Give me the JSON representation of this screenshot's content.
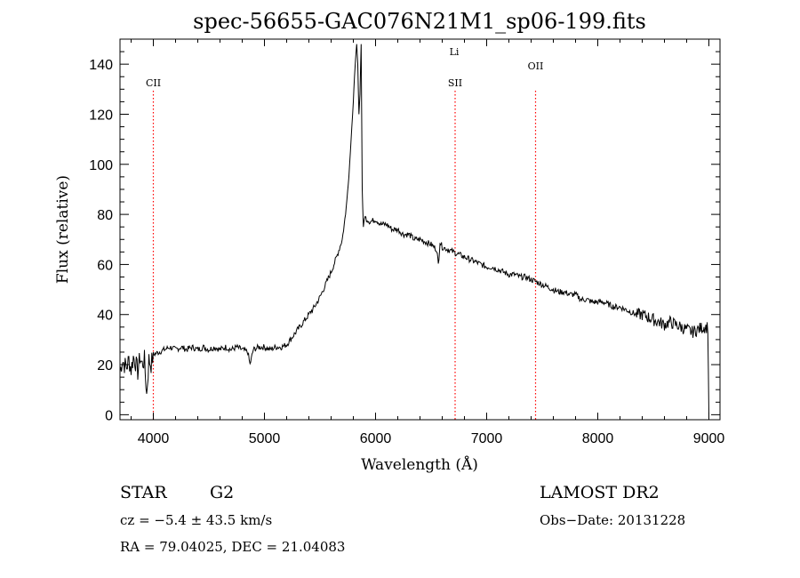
{
  "chart_data": {
    "type": "line",
    "title": "spec-56655-GAC076N21M1_sp06-199.fits",
    "xlabel": "Wavelength (Å)",
    "ylabel": "Flux (relative)",
    "xlim": [
      3700,
      9100
    ],
    "ylim": [
      -2,
      150
    ],
    "x_ticks": [
      4000,
      5000,
      6000,
      7000,
      8000,
      9000
    ],
    "y_ticks": [
      0,
      20,
      40,
      60,
      80,
      100,
      120,
      140
    ],
    "x_tick_labels": [
      "4000",
      "5000",
      "6000",
      "7000",
      "8000",
      "9000"
    ],
    "y_tick_labels": [
      "0",
      "20",
      "40",
      "60",
      "80",
      "100",
      "120",
      "140"
    ],
    "grid": false,
    "line_color": "#000000",
    "marker_color": "#ff0000",
    "series": [
      {
        "values_x": [
          3700,
          3720,
          3740,
          3760,
          3780,
          3800,
          3820,
          3840,
          3860,
          3880,
          3900,
          3920,
          3940,
          3960,
          3980,
          4000,
          4050,
          4100,
          4150,
          4200,
          4250,
          4300,
          4350,
          4400,
          4450,
          4500,
          4550,
          4600,
          4650,
          4700,
          4750,
          4800,
          4850,
          4870,
          4900,
          4950,
          5000,
          5050,
          5100,
          5150,
          5200,
          5250,
          5300,
          5350,
          5400,
          5450,
          5500,
          5550,
          5600,
          5650,
          5700,
          5730,
          5760,
          5780,
          5800,
          5810,
          5820,
          5830,
          5840,
          5850,
          5860,
          5870,
          5880,
          5890,
          5900,
          5950,
          6000,
          6050,
          6100,
          6150,
          6200,
          6250,
          6300,
          6350,
          6400,
          6450,
          6500,
          6550,
          6565,
          6580,
          6600,
          6650,
          6700,
          6750,
          6800,
          6850,
          6900,
          6950,
          7000,
          7050,
          7100,
          7150,
          7200,
          7250,
          7300,
          7350,
          7400,
          7450,
          7500,
          7550,
          7600,
          7650,
          7700,
          7750,
          7800,
          7850,
          7900,
          7950,
          8000,
          8050,
          8100,
          8150,
          8200,
          8250,
          8300,
          8350,
          8400,
          8450,
          8500,
          8550,
          8600,
          8650,
          8700,
          8750,
          8800,
          8850,
          8900,
          8950,
          8990,
          9000
        ],
        "values_y": [
          17,
          22,
          20,
          19,
          22,
          18,
          23,
          21,
          17,
          23,
          20,
          22,
          8,
          22,
          20,
          24,
          25,
          26,
          27,
          26,
          27,
          26,
          27,
          26,
          27,
          26,
          27,
          26,
          27,
          26,
          27,
          26,
          25,
          20,
          26,
          27,
          27,
          26,
          27,
          27,
          28,
          31,
          34,
          37,
          40,
          43,
          47,
          52,
          57,
          63,
          70,
          80,
          95,
          110,
          125,
          135,
          142,
          148,
          140,
          120,
          128,
          148,
          90,
          75,
          79,
          77,
          78,
          76,
          76,
          74,
          74,
          72,
          72,
          70,
          70,
          69,
          68,
          66,
          60,
          69,
          67,
          66,
          65,
          64,
          63,
          62,
          61,
          60,
          59,
          59,
          58,
          57,
          56,
          56,
          55,
          55,
          54,
          53,
          52,
          51,
          50,
          49,
          49,
          48,
          48,
          46,
          46,
          45,
          45,
          45,
          44,
          43,
          43,
          42,
          41,
          40,
          40,
          39,
          38,
          37,
          36,
          37,
          36,
          35,
          34,
          33,
          34,
          35,
          35,
          0
        ]
      }
    ],
    "annotations": [
      {
        "label": "CII",
        "x": 4000
      },
      {
        "label": "SII",
        "x": 6716
      },
      {
        "label": "Li",
        "x": 6708
      },
      {
        "label": "OII",
        "x": 7440
      }
    ]
  },
  "info": {
    "object_class": "STAR",
    "subclass": "G2",
    "survey": "LAMOST DR2",
    "cz_line": "cz = −5.4 ± 43.5 km/s",
    "obs_date": "Obs−Date: 20131228",
    "coords": "RA =  79.04025, DEC =  21.04083"
  }
}
